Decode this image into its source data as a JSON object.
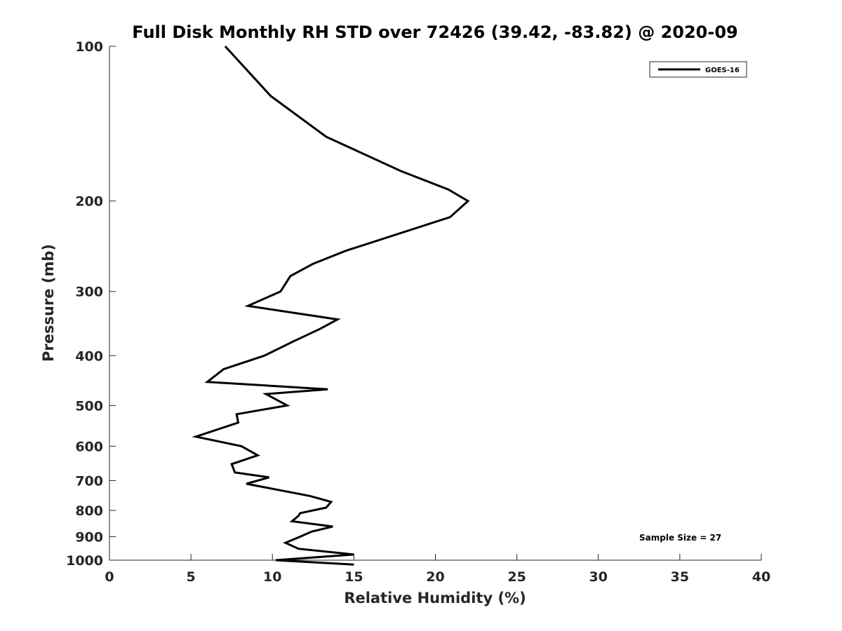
{
  "chart_data": {
    "type": "line",
    "title": "Full Disk Monthly RH STD over 72426 (39.42, -83.82) @ 2020-09",
    "xlabel": "Relative Humidity (%)",
    "ylabel": "Pressure (mb)",
    "xlim": [
      0,
      40
    ],
    "ylim": [
      100,
      1000
    ],
    "y_scale": "log",
    "y_reversed": true,
    "xticks": [
      0,
      5,
      10,
      15,
      20,
      25,
      30,
      35,
      40
    ],
    "yticks": [
      100,
      200,
      300,
      400,
      500,
      600,
      700,
      800,
      900,
      1000
    ],
    "grid": false,
    "legend_position": "top-right",
    "series": [
      {
        "name": "GOES-16",
        "color": "#000000",
        "x": [
          7.1,
          9.9,
          13.3,
          17.9,
          20.8,
          22.0,
          20.9,
          14.5,
          12.5,
          11.1,
          10.5,
          8.5,
          14.0,
          12.9,
          11.3,
          9.5,
          7.0,
          6.0,
          13.4,
          9.6,
          10.9,
          7.8,
          7.9,
          5.3,
          8.1,
          9.1,
          7.5,
          7.7,
          9.8,
          8.4,
          12.3,
          13.6,
          13.3,
          11.7,
          11.6,
          11.2,
          13.7,
          12.4,
          11.7,
          10.8,
          11.6,
          15.0,
          10.2,
          15.0
        ],
        "y": [
          100,
          125,
          150,
          175,
          190,
          200,
          215,
          250,
          265,
          280,
          300,
          320,
          340,
          355,
          375,
          400,
          425,
          450,
          465,
          475,
          500,
          520,
          540,
          575,
          600,
          625,
          650,
          675,
          690,
          710,
          750,
          770,
          790,
          810,
          820,
          840,
          860,
          880,
          900,
          925,
          950,
          975,
          1000,
          1020
        ]
      }
    ],
    "annotations": [
      "Sample Size = 27"
    ]
  }
}
